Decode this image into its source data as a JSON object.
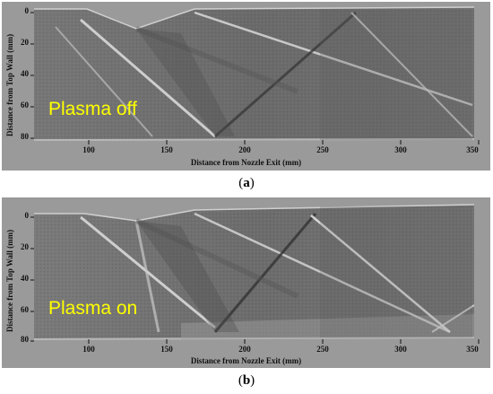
{
  "figure": {
    "panels": [
      {
        "id": "a",
        "caption_open": "(",
        "caption_letter": "a",
        "caption_close": ")",
        "overlay_text": "Plasma off",
        "ylabel": "Distance from Top Wall (mm)",
        "xlabel": "Distance from Nozzle Exit (mm)",
        "x_ticks": [
          "100",
          "150",
          "200",
          "250",
          "300",
          "350"
        ],
        "y_ticks": [
          "0",
          "20",
          "40",
          "60",
          "80"
        ]
      },
      {
        "id": "b",
        "caption_open": "(",
        "caption_letter": "b",
        "caption_close": ")",
        "overlay_text": "Plasma on",
        "ylabel": "Distance from Top Wall (mm)",
        "xlabel": "Distance from Nozzle Exit (mm)",
        "x_ticks": [
          "100",
          "150",
          "200",
          "250",
          "300",
          "350"
        ],
        "y_ticks": [
          "0",
          "20",
          "40",
          "60",
          "80"
        ]
      }
    ],
    "overlay_color": "#ffff00",
    "frame_color": "#9a9a9a",
    "image_color": "#6e6e6e"
  }
}
